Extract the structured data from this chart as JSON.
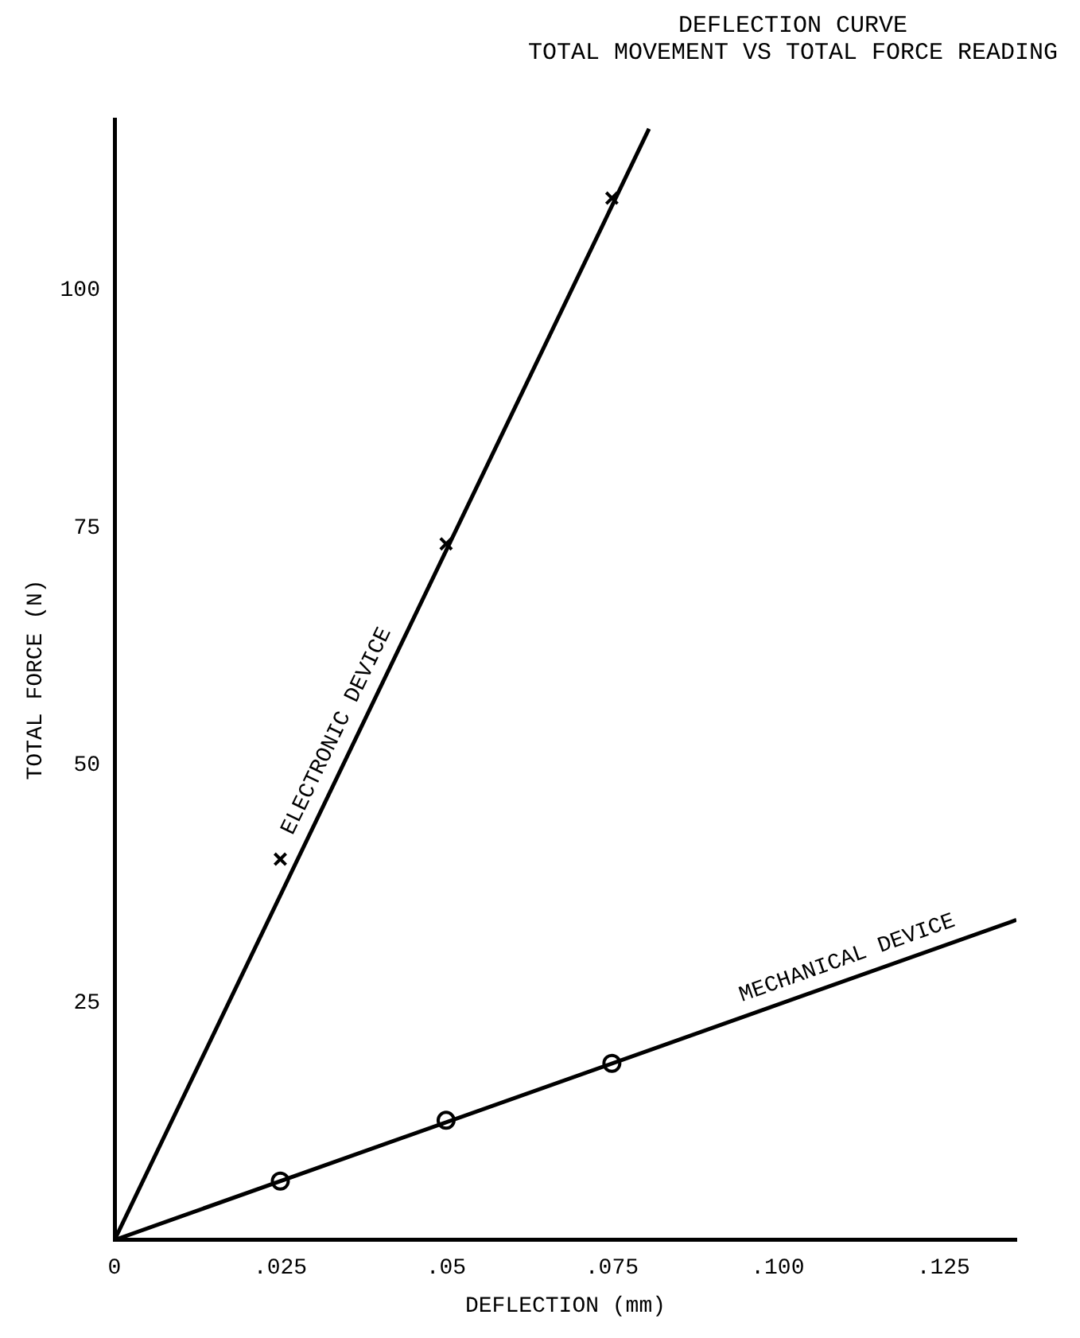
{
  "chart_data": {
    "type": "line",
    "title": "DEFLECTION CURVE",
    "subtitle": "TOTAL MOVEMENT VS TOTAL FORCE READING",
    "xlabel": "DEFLECTION (mm)",
    "ylabel": "TOTAL FORCE (N)",
    "xlim": [
      0,
      0.136
    ],
    "xticks": [
      {
        "value": 0,
        "label": "0"
      },
      {
        "value": 0.025,
        "label": ".025"
      },
      {
        "value": 0.05,
        "label": ".05"
      },
      {
        "value": 0.075,
        "label": ".075"
      },
      {
        "value": 0.1,
        "label": ".100"
      },
      {
        "value": 0.125,
        "label": ".125"
      }
    ],
    "ylim": [
      0,
      118
    ],
    "yticks": [
      25,
      50,
      75,
      100
    ],
    "grid": false,
    "legend": false,
    "series": [
      {
        "name": "ELECTRONIC DEVICE",
        "type": "line",
        "marker": "none",
        "color": "#000000",
        "x": [
          0,
          0.0806
        ],
        "values": [
          0,
          117
        ]
      },
      {
        "name": "MECHANICAL DEVICE",
        "type": "line",
        "marker": "none",
        "color": "#000000",
        "x": [
          0,
          0.136
        ],
        "values": [
          0,
          33.7
        ]
      },
      {
        "type": "scatter",
        "marker": "cross",
        "color": "#000000",
        "x": [
          0.025,
          0.05,
          0.075
        ],
        "values": [
          40.1,
          73.3,
          109.7
        ]
      },
      {
        "type": "scatter",
        "marker": "circle",
        "color": "#000000",
        "x": [
          0.025,
          0.05,
          0.075
        ],
        "values": [
          6.2,
          12.6,
          18.6
        ]
      }
    ]
  }
}
